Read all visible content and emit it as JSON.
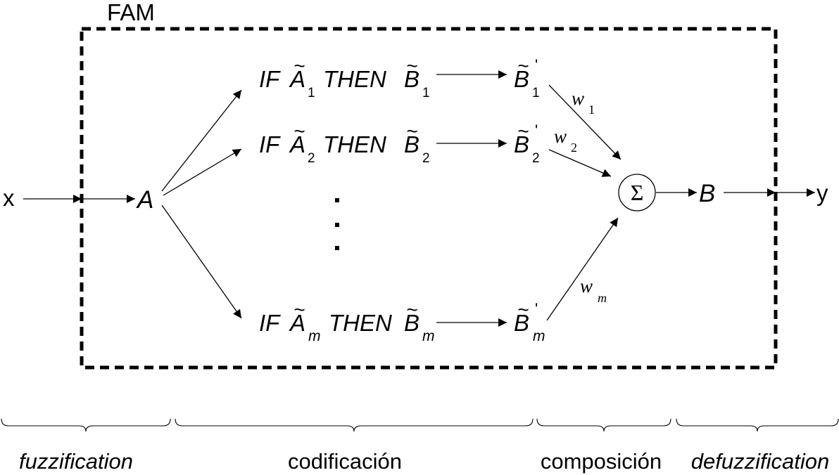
{
  "fam_label": "FAM",
  "input_label": "x",
  "output_label": "y",
  "fuzzy_input_label": "A",
  "fuzzy_output_label": "B",
  "sum_symbol": "Σ",
  "rules": [
    {
      "if_word": "IF",
      "antecedent": "A",
      "then_word": "THEN",
      "consequent": "B",
      "subscript": "1",
      "result": "B",
      "result_prime": "'",
      "weight": "w",
      "weight_subscript": "1"
    },
    {
      "if_word": "IF",
      "antecedent": "A",
      "then_word": "THEN",
      "consequent": "B",
      "subscript": "2",
      "result": "B",
      "result_prime": "'",
      "weight": "w",
      "weight_subscript": "2"
    },
    {
      "if_word": "IF",
      "antecedent": "A",
      "then_word": "THEN",
      "consequent": "B",
      "subscript": "m",
      "result": "B",
      "result_prime": "'",
      "weight": "w",
      "weight_subscript": "m"
    }
  ],
  "tilde": "~",
  "stages": [
    {
      "label": "fuzzification",
      "italic": true
    },
    {
      "label": "codificación",
      "italic": false
    },
    {
      "label": "composición",
      "italic": false
    },
    {
      "label": "defuzzification",
      "italic": true
    }
  ]
}
